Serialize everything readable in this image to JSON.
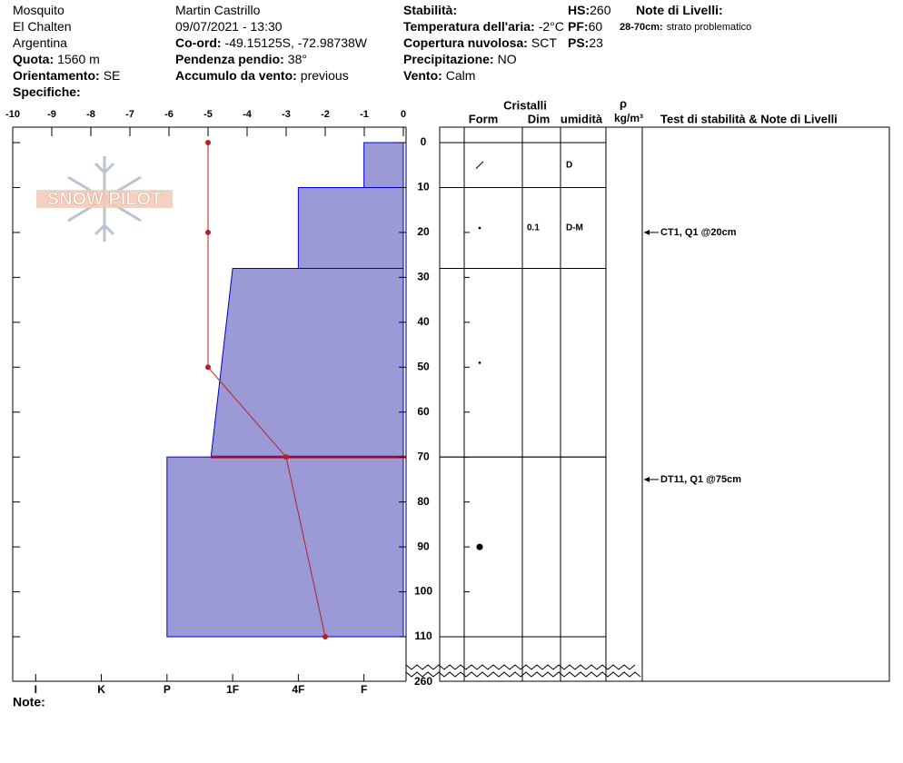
{
  "header": {
    "col1": [
      {
        "value": "Mosquito"
      },
      {
        "value": "El Chalten"
      },
      {
        "value": "Argentina"
      },
      {
        "label": "Quota:",
        "value": "1560 m"
      },
      {
        "label": "Orientamento:",
        "value": "SE"
      },
      {
        "label": "Specifiche:"
      }
    ],
    "col2": [
      {
        "value": "Martin Castrillo"
      },
      {
        "value": "09/07/2021 - 13:30"
      },
      {
        "label": "Co-ord:",
        "value": "-49.15125S, -72.98738W"
      },
      {
        "label": "Pendenza pendio:",
        "value": "38°"
      },
      {
        "label": "Accumulo da vento:",
        "value": "previous"
      }
    ],
    "col3": [
      {
        "label": "Stabilità:"
      },
      {
        "label": "Temperatura dell'aria:",
        "value": "-2°C"
      },
      {
        "label": "Copertura nuvolosa:",
        "value": "SCT"
      },
      {
        "label": "Precipitazione:",
        "value": "NO"
      },
      {
        "label": "Vento:",
        "value": "Calm"
      }
    ],
    "col4": [
      {
        "label": "HS:",
        "value": "260"
      },
      {
        "label": "PF:",
        "value": "60"
      },
      {
        "label": "PS:",
        "value": "23"
      }
    ],
    "col5": [
      {
        "label": "Note di Livelli:"
      },
      {
        "label": "28-70cm:",
        "value": "strato problematico"
      }
    ]
  },
  "logo": "SNOW PILOT",
  "notes_label": "Note:",
  "chart_data": {
    "type": "snow-profile",
    "temperature": {
      "xlim": [
        -10,
        0
      ],
      "xticks": [
        -10,
        -9,
        -8,
        -7,
        -6,
        -5,
        -4,
        -3,
        -2,
        -1,
        0
      ],
      "depths": [
        0,
        20,
        50,
        70,
        110
      ],
      "values": [
        -5,
        -5,
        -5,
        -3,
        -2
      ],
      "color": "#b22222"
    },
    "depth": {
      "ylim": [
        0,
        110
      ],
      "yticks": [
        0,
        10,
        20,
        30,
        40,
        50,
        60,
        70,
        80,
        90,
        100,
        110
      ],
      "bottom_label": 260
    },
    "hardness": {
      "xlim": [
        0.4,
        6.35
      ],
      "ticks": [
        {
          "value": 6,
          "label": "I"
        },
        {
          "value": 5,
          "label": "K"
        },
        {
          "value": 4,
          "label": "P"
        },
        {
          "value": 3,
          "label": "1F"
        },
        {
          "value": 2,
          "label": "4F"
        },
        {
          "value": 1,
          "label": "F"
        }
      ]
    },
    "layer_color": "#9c9ad6",
    "layer_edge": "#0000cc",
    "layers": [
      {
        "top": 0,
        "bottom": 10,
        "hardness_top": 1,
        "hardness_bottom": 1,
        "moisture": "D"
      },
      {
        "top": 10,
        "bottom": 28,
        "hardness_top": 2,
        "hardness_bottom": 2,
        "grain_size": 0.1,
        "moisture": "D-M"
      },
      {
        "top": 28,
        "bottom": 70,
        "hardness_top": 3,
        "hardness_bottom": 3.33
      },
      {
        "top": 70,
        "bottom": 110,
        "hardness_top": 4,
        "hardness_bottom": 4
      }
    ],
    "critical_depth": 70,
    "columns": {
      "crystals": "Cristalli",
      "form": "Form",
      "dim": "Dim",
      "moisture": "umidità",
      "density": "ρ",
      "density_unit": "kg/m³",
      "tests": "Test di stabilità & Note di Livelli"
    },
    "tests": [
      {
        "label": "CT1, Q1 @20cm",
        "depth": 20
      },
      {
        "label": "DT11, Q1 @75cm",
        "depth": 75
      }
    ]
  }
}
